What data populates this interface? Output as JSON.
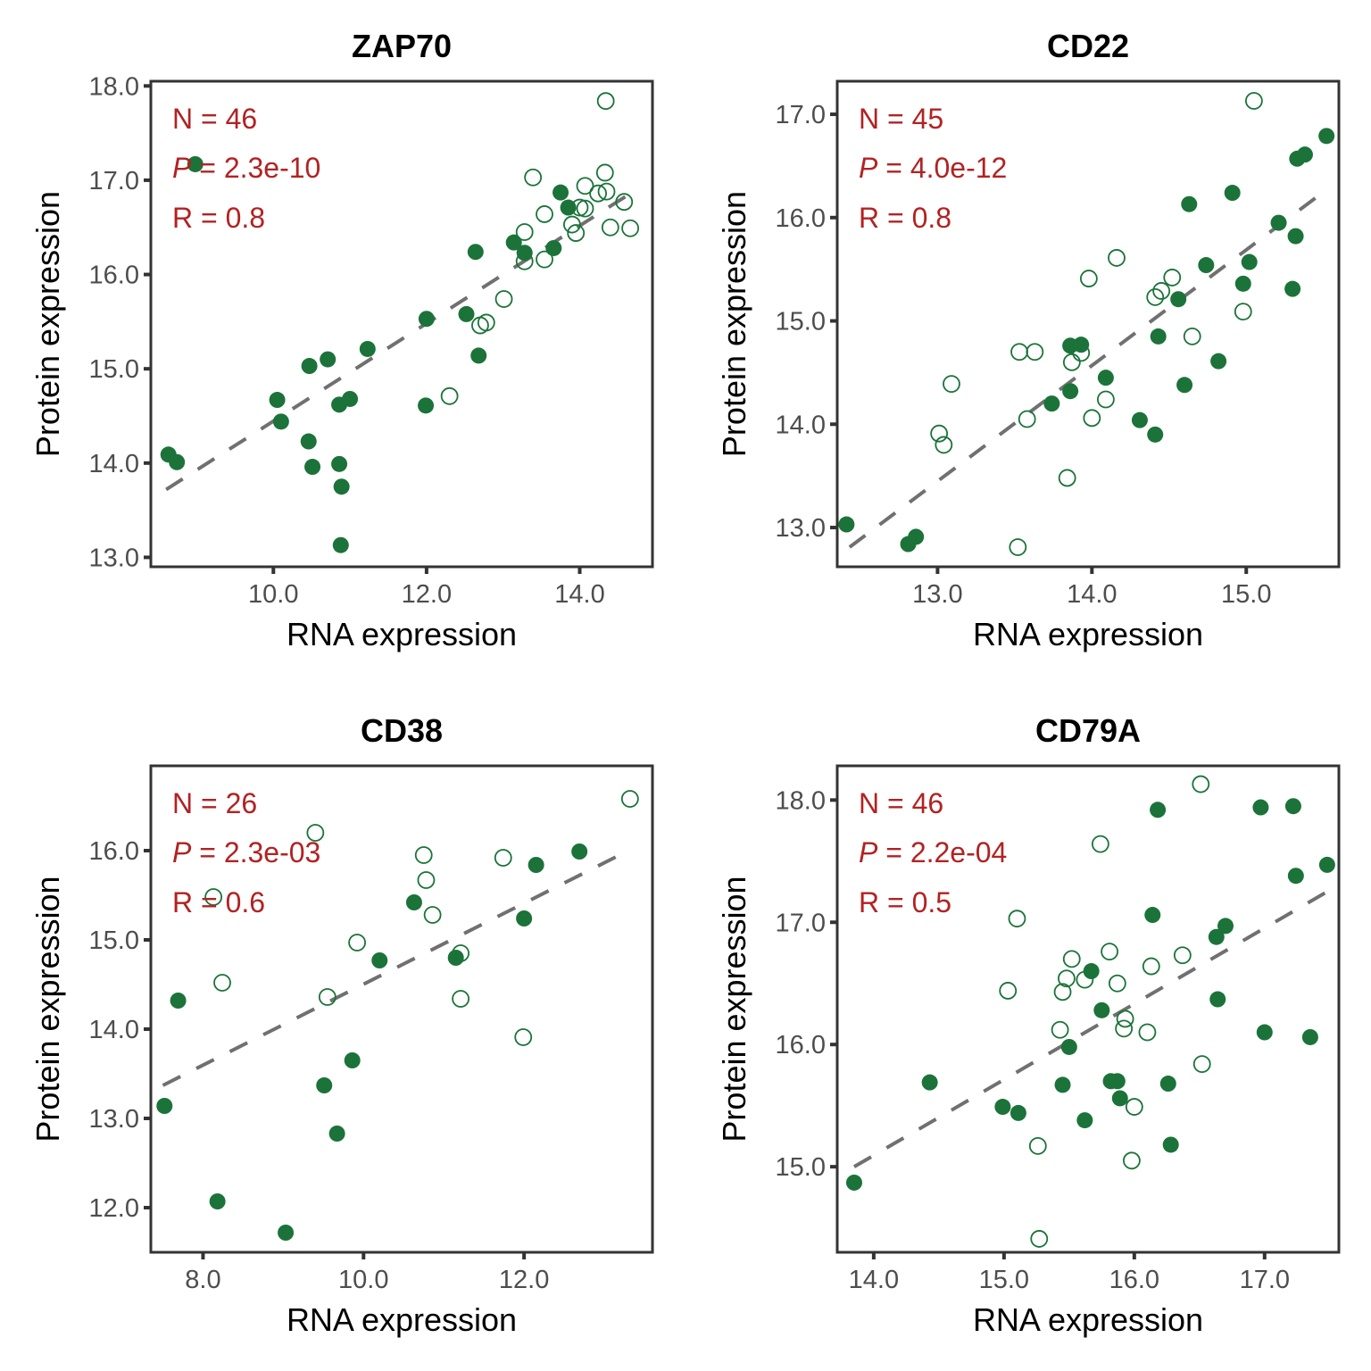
{
  "colors": {
    "point": "#1B7339",
    "annotation": "#B22222",
    "fit_line": "#707070",
    "frame": "#333333"
  },
  "chart_data": [
    {
      "type": "scatter",
      "title": "ZAP70",
      "xlabel": "RNA expression",
      "ylabel": "Protein expression",
      "xlim": [
        8.4,
        14.95
      ],
      "ylim": [
        12.9,
        18.05
      ],
      "xticks": [
        10.0,
        12.0,
        14.0
      ],
      "xtick_labels": [
        "10.0",
        "12.0",
        "14.0"
      ],
      "yticks": [
        13.0,
        14.0,
        15.0,
        16.0,
        17.0,
        18.0
      ],
      "ytick_labels": [
        "13.0",
        "14.0",
        "15.0",
        "16.0",
        "17.0",
        "18.0"
      ],
      "annotations": {
        "n": "N = 46",
        "p_label": "P",
        "p_value": " = 2.3e-10",
        "r": "R = 0.8"
      },
      "fit_line": {
        "x": [
          8.6,
          14.7
        ],
        "y": [
          13.72,
          16.88
        ]
      },
      "grid": false,
      "series": [
        {
          "name": "filled",
          "marker": "filled-circle",
          "points": [
            [
              8.63,
              14.09
            ],
            [
              8.74,
              14.01
            ],
            [
              8.98,
              17.17
            ],
            [
              10.05,
              14.67
            ],
            [
              10.1,
              14.44
            ],
            [
              10.46,
              14.23
            ],
            [
              10.47,
              15.03
            ],
            [
              10.51,
              13.96
            ],
            [
              10.71,
              15.1
            ],
            [
              10.86,
              14.62
            ],
            [
              10.86,
              13.99
            ],
            [
              10.89,
              13.75
            ],
            [
              10.88,
              13.13
            ],
            [
              11.0,
              14.68
            ],
            [
              11.23,
              15.21
            ],
            [
              11.99,
              14.61
            ],
            [
              12.0,
              15.53
            ],
            [
              12.52,
              15.58
            ],
            [
              12.68,
              15.14
            ],
            [
              12.64,
              16.24
            ],
            [
              13.14,
              16.34
            ],
            [
              13.28,
              16.23
            ],
            [
              13.66,
              16.28
            ],
            [
              13.75,
              16.87
            ],
            [
              13.85,
              16.71
            ]
          ]
        },
        {
          "name": "open",
          "marker": "open-circle",
          "points": [
            [
              12.3,
              14.71
            ],
            [
              12.7,
              15.46
            ],
            [
              12.78,
              15.49
            ],
            [
              13.01,
              15.74
            ],
            [
              13.28,
              16.14
            ],
            [
              13.28,
              16.45
            ],
            [
              13.39,
              17.03
            ],
            [
              13.54,
              16.64
            ],
            [
              13.54,
              16.16
            ],
            [
              13.9,
              16.53
            ],
            [
              13.95,
              16.44
            ],
            [
              14.0,
              16.71
            ],
            [
              14.07,
              16.7
            ],
            [
              14.07,
              16.94
            ],
            [
              14.24,
              16.86
            ],
            [
              14.33,
              17.08
            ],
            [
              14.35,
              16.88
            ],
            [
              14.4,
              16.5
            ],
            [
              14.58,
              16.77
            ],
            [
              14.66,
              16.49
            ],
            [
              14.34,
              17.84
            ]
          ]
        }
      ]
    },
    {
      "type": "scatter",
      "title": "CD22",
      "xlabel": "RNA expression",
      "ylabel": "Protein expression",
      "xlim": [
        12.35,
        15.6
      ],
      "ylim": [
        12.62,
        17.32
      ],
      "xticks": [
        13.0,
        14.0,
        15.0
      ],
      "xtick_labels": [
        "13.0",
        "14.0",
        "15.0"
      ],
      "yticks": [
        13.0,
        14.0,
        15.0,
        16.0,
        17.0
      ],
      "ytick_labels": [
        "13.0",
        "14.0",
        "15.0",
        "16.0",
        "17.0"
      ],
      "annotations": {
        "n": "N = 45",
        "p_label": "P",
        "p_value": " = 4.0e-12",
        "r": "R = 0.8"
      },
      "fit_line": {
        "x": [
          12.43,
          15.52
        ],
        "y": [
          12.81,
          16.27
        ]
      },
      "grid": false,
      "series": [
        {
          "name": "filled",
          "marker": "filled-circle",
          "points": [
            [
              12.41,
              13.03
            ],
            [
              12.81,
              12.84
            ],
            [
              12.86,
              12.91
            ],
            [
              13.74,
              14.2
            ],
            [
              13.86,
              14.32
            ],
            [
              13.86,
              14.76
            ],
            [
              13.93,
              14.77
            ],
            [
              14.09,
              14.45
            ],
            [
              14.31,
              14.04
            ],
            [
              14.41,
              13.9
            ],
            [
              14.43,
              14.85
            ],
            [
              14.56,
              15.21
            ],
            [
              14.6,
              14.38
            ],
            [
              14.63,
              16.13
            ],
            [
              14.74,
              15.54
            ],
            [
              14.82,
              14.61
            ],
            [
              14.91,
              16.24
            ],
            [
              14.98,
              15.36
            ],
            [
              15.02,
              15.57
            ],
            [
              15.21,
              15.95
            ],
            [
              15.3,
              15.31
            ],
            [
              15.32,
              15.82
            ],
            [
              15.33,
              16.57
            ],
            [
              15.38,
              16.61
            ],
            [
              15.52,
              16.79
            ]
          ]
        },
        {
          "name": "open",
          "marker": "open-circle",
          "points": [
            [
              13.01,
              13.91
            ],
            [
              13.04,
              13.8
            ],
            [
              13.09,
              14.39
            ],
            [
              13.52,
              12.81
            ],
            [
              13.53,
              14.7
            ],
            [
              13.58,
              14.05
            ],
            [
              13.63,
              14.7
            ],
            [
              13.84,
              13.48
            ],
            [
              13.87,
              14.6
            ],
            [
              13.93,
              14.69
            ],
            [
              13.98,
              15.41
            ],
            [
              14.0,
              14.06
            ],
            [
              14.09,
              14.24
            ],
            [
              14.16,
              15.61
            ],
            [
              14.41,
              15.23
            ],
            [
              14.45,
              15.29
            ],
            [
              14.52,
              15.42
            ],
            [
              14.65,
              14.85
            ],
            [
              14.98,
              15.09
            ],
            [
              15.05,
              17.13
            ]
          ]
        }
      ]
    },
    {
      "type": "scatter",
      "title": "CD38",
      "xlabel": "RNA expression",
      "ylabel": "Protein expression",
      "xlim": [
        7.35,
        13.6
      ],
      "ylim": [
        11.5,
        16.95
      ],
      "xticks": [
        8.0,
        10.0,
        12.0
      ],
      "xtick_labels": [
        "8.0",
        "10.0",
        "12.0"
      ],
      "yticks": [
        12.0,
        13.0,
        14.0,
        15.0,
        16.0
      ],
      "ytick_labels": [
        "12.0",
        "13.0",
        "14.0",
        "15.0",
        "16.0"
      ],
      "annotations": {
        "n": "N = 26",
        "p_label": "P",
        "p_value": " = 2.3e-03",
        "r": "R = 0.6"
      },
      "fit_line": {
        "x": [
          7.5,
          13.3
        ],
        "y": [
          13.37,
          16.0
        ]
      },
      "grid": false,
      "series": [
        {
          "name": "filled",
          "marker": "filled-circle",
          "points": [
            [
              7.52,
              13.14
            ],
            [
              7.69,
              14.32
            ],
            [
              8.18,
              12.07
            ],
            [
              9.03,
              11.72
            ],
            [
              9.51,
              13.37
            ],
            [
              9.67,
              12.83
            ],
            [
              9.86,
              13.65
            ],
            [
              10.2,
              14.77
            ],
            [
              10.63,
              15.42
            ],
            [
              11.15,
              14.8
            ],
            [
              12.0,
              15.24
            ],
            [
              12.15,
              15.84
            ],
            [
              12.69,
              15.99
            ]
          ]
        },
        {
          "name": "open",
          "marker": "open-circle",
          "points": [
            [
              8.13,
              15.48
            ],
            [
              8.24,
              14.52
            ],
            [
              9.4,
              16.2
            ],
            [
              9.55,
              14.36
            ],
            [
              9.92,
              14.97
            ],
            [
              10.75,
              15.95
            ],
            [
              10.78,
              15.67
            ],
            [
              10.86,
              15.28
            ],
            [
              11.21,
              14.85
            ],
            [
              11.21,
              14.34
            ],
            [
              11.74,
              15.92
            ],
            [
              11.99,
              13.91
            ],
            [
              13.32,
              16.58
            ]
          ]
        }
      ]
    },
    {
      "type": "scatter",
      "title": "CD79A",
      "xlabel": "RNA expression",
      "ylabel": "Protein expression",
      "xlim": [
        13.72,
        17.57
      ],
      "ylim": [
        14.3,
        18.28
      ],
      "xticks": [
        14.0,
        15.0,
        16.0,
        17.0
      ],
      "xtick_labels": [
        "14.0",
        "15.0",
        "16.0",
        "17.0"
      ],
      "yticks": [
        15.0,
        16.0,
        17.0,
        18.0
      ],
      "ytick_labels": [
        "15.0",
        "16.0",
        "17.0",
        "18.0"
      ],
      "annotations": {
        "n": "N = 46",
        "p_label": "P",
        "p_value": " = 2.2e-04",
        "r": "R = 0.5"
      },
      "fit_line": {
        "x": [
          13.85,
          17.48
        ],
        "y": [
          15.0,
          17.25
        ]
      },
      "grid": false,
      "series": [
        {
          "name": "filled",
          "marker": "filled-circle",
          "points": [
            [
              13.85,
              14.87
            ],
            [
              14.43,
              15.69
            ],
            [
              14.99,
              15.49
            ],
            [
              15.11,
              15.44
            ],
            [
              15.45,
              15.67
            ],
            [
              15.5,
              15.98
            ],
            [
              15.62,
              15.38
            ],
            [
              15.67,
              16.6
            ],
            [
              15.75,
              16.28
            ],
            [
              15.82,
              15.7
            ],
            [
              15.87,
              15.7
            ],
            [
              15.89,
              15.56
            ],
            [
              16.14,
              17.06
            ],
            [
              16.18,
              17.92
            ],
            [
              16.26,
              15.68
            ],
            [
              16.28,
              15.18
            ],
            [
              16.63,
              16.88
            ],
            [
              16.64,
              16.37
            ],
            [
              16.7,
              16.97
            ],
            [
              16.97,
              17.94
            ],
            [
              17.0,
              16.1
            ],
            [
              17.22,
              17.95
            ],
            [
              17.24,
              17.38
            ],
            [
              17.35,
              16.06
            ],
            [
              17.48,
              17.47
            ]
          ]
        },
        {
          "name": "open",
          "marker": "open-circle",
          "points": [
            [
              15.03,
              16.44
            ],
            [
              15.1,
              17.03
            ],
            [
              15.26,
              15.17
            ],
            [
              15.27,
              14.41
            ],
            [
              15.43,
              16.12
            ],
            [
              15.45,
              16.43
            ],
            [
              15.48,
              16.54
            ],
            [
              15.52,
              16.7
            ],
            [
              15.62,
              16.53
            ],
            [
              15.74,
              17.64
            ],
            [
              15.81,
              16.76
            ],
            [
              15.87,
              16.5
            ],
            [
              15.92,
              16.13
            ],
            [
              15.93,
              16.21
            ],
            [
              15.98,
              15.05
            ],
            [
              16.0,
              15.49
            ],
            [
              16.1,
              16.1
            ],
            [
              16.13,
              16.64
            ],
            [
              16.37,
              16.73
            ],
            [
              16.52,
              15.84
            ],
            [
              16.51,
              18.13
            ]
          ]
        }
      ]
    }
  ]
}
